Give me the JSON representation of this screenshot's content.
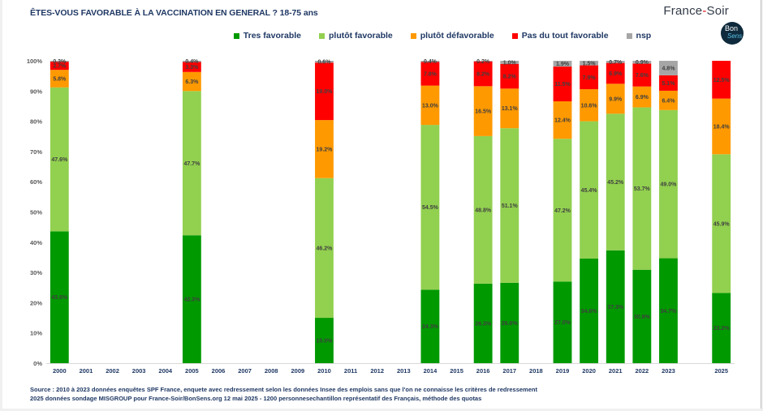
{
  "header": {
    "title": "ÊTES-VOUS FAVORABLE À LA VACCINATION EN GENERAL ? 18-75 ans",
    "brand_left": "France",
    "brand_dash": "-",
    "brand_right": "Soir",
    "badge_line1": "Bon",
    "badge_line2": "Sens"
  },
  "footer": {
    "source_line1": "Source : 2010 à 2023 données enquêtes SPF France, enquete avec redressement selon les données Insee des emplois sans que l'on ne connaisse les critères de redressement",
    "source_line2": "2025 données sondage MISGROUP pour France-Soir/BonSens.org 12 mai 2025 - 1200 personnesechantillon représentatif des Français, méthode des quotas"
  },
  "chart_data": {
    "type": "bar",
    "stacked": true,
    "percent_stacked": true,
    "title": "ÊTES-VOUS FAVORABLE À LA VACCINATION EN GENERAL ? 18-75 ans",
    "xlabel": "",
    "ylabel": "",
    "ylim": [
      0,
      100
    ],
    "yticks": [
      "0%",
      "10%",
      "20%",
      "30%",
      "40%",
      "50%",
      "60%",
      "70%",
      "80%",
      "90%",
      "100%"
    ],
    "legend_position": "top",
    "grid": false,
    "categories": [
      "2000",
      "2001",
      "2002",
      "2003",
      "2004",
      "2005",
      "2006",
      "2007",
      "2008",
      "2009",
      "2010",
      "2011",
      "2012",
      "2013",
      "2014",
      "2015",
      "2016",
      "2017",
      "2018",
      "2019",
      "2020",
      "2021",
      "2022",
      "2023",
      "",
      "2025"
    ],
    "series": [
      {
        "name": "Tres favorable",
        "color": "#009900",
        "values": [
          43.6,
          null,
          null,
          null,
          null,
          42.3,
          null,
          null,
          null,
          null,
          15.0,
          null,
          null,
          null,
          24.3,
          null,
          26.3,
          26.6,
          null,
          27.0,
          34.6,
          37.3,
          30.9,
          34.7,
          null,
          23.2
        ],
        "labels": [
          "43.6%",
          "",
          "",
          "",
          "",
          "42.3%",
          "",
          "",
          "",
          "",
          "15.0%",
          "",
          "",
          "",
          "24.3%",
          "",
          "26.3%",
          "26.6%",
          "",
          "27.0%",
          "34.6%",
          "37.3%",
          "30.9%",
          "34.7%",
          "",
          "23.2%"
        ]
      },
      {
        "name": "plutôt favorable",
        "color": "#92d050",
        "values": [
          47.6,
          null,
          null,
          null,
          null,
          47.7,
          null,
          null,
          null,
          null,
          46.2,
          null,
          null,
          null,
          54.5,
          null,
          48.8,
          51.1,
          null,
          47.2,
          45.4,
          45.2,
          53.7,
          49.0,
          null,
          45.9
        ],
        "labels": [
          "47.6%",
          "",
          "",
          "",
          "",
          "47.7%",
          "",
          "",
          "",
          "",
          "46.2%",
          "",
          "",
          "",
          "54.5%",
          "",
          "48.8%",
          "51.1%",
          "",
          "47.2%",
          "45.4%",
          "45.2%",
          "53.7%",
          "49.0%",
          "",
          "45.9%"
        ]
      },
      {
        "name": "plutôt défavorable",
        "color": "#ff9900",
        "values": [
          5.8,
          null,
          null,
          null,
          null,
          6.3,
          null,
          null,
          null,
          null,
          19.2,
          null,
          null,
          null,
          13.0,
          null,
          16.5,
          13.1,
          null,
          12.4,
          10.6,
          9.9,
          6.9,
          6.4,
          null,
          18.4
        ],
        "labels": [
          "5.8%",
          "",
          "",
          "",
          "",
          "6.3%",
          "",
          "",
          "",
          "",
          "19.2%",
          "",
          "",
          "",
          "13.0%",
          "",
          "16.5%",
          "13.1%",
          "",
          "12.4%",
          "10.6%",
          "9.9%",
          "6.9%",
          "6.4%",
          "",
          "18.4%"
        ]
      },
      {
        "name": "Pas du tout favorable",
        "color": "#ff0000",
        "values": [
          2.7,
          null,
          null,
          null,
          null,
          3.3,
          null,
          null,
          null,
          null,
          19.0,
          null,
          null,
          null,
          7.8,
          null,
          8.2,
          8.2,
          null,
          11.5,
          7.9,
          6.9,
          7.6,
          5.1,
          null,
          12.5
        ],
        "labels": [
          "2.7%",
          "",
          "",
          "",
          "",
          "3.3%",
          "",
          "",
          "",
          "",
          "19.0%",
          "",
          "",
          "",
          "7.8%",
          "",
          "8.2%",
          "8.2%",
          "",
          "11.5%",
          "7.9%",
          "6.9%",
          "7.6%",
          "5.1%",
          "",
          "12.5%"
        ]
      },
      {
        "name": "nsp",
        "color": "#a6a6a6",
        "values": [
          0.3,
          null,
          null,
          null,
          null,
          0.4,
          null,
          null,
          null,
          null,
          0.6,
          null,
          null,
          null,
          0.4,
          null,
          0.2,
          1.0,
          null,
          1.9,
          1.5,
          0.7,
          0.9,
          4.8,
          null,
          0
        ],
        "labels": [
          "0.3%",
          "",
          "",
          "",
          "",
          "0.4%",
          "",
          "",
          "",
          "",
          "0.6%",
          "",
          "",
          "",
          "0.4%",
          "",
          "0.2%",
          "1.0%",
          "",
          "1.9%",
          "1.5%",
          "0.7%",
          "0.9%",
          "4.8%",
          "",
          ""
        ]
      }
    ]
  }
}
